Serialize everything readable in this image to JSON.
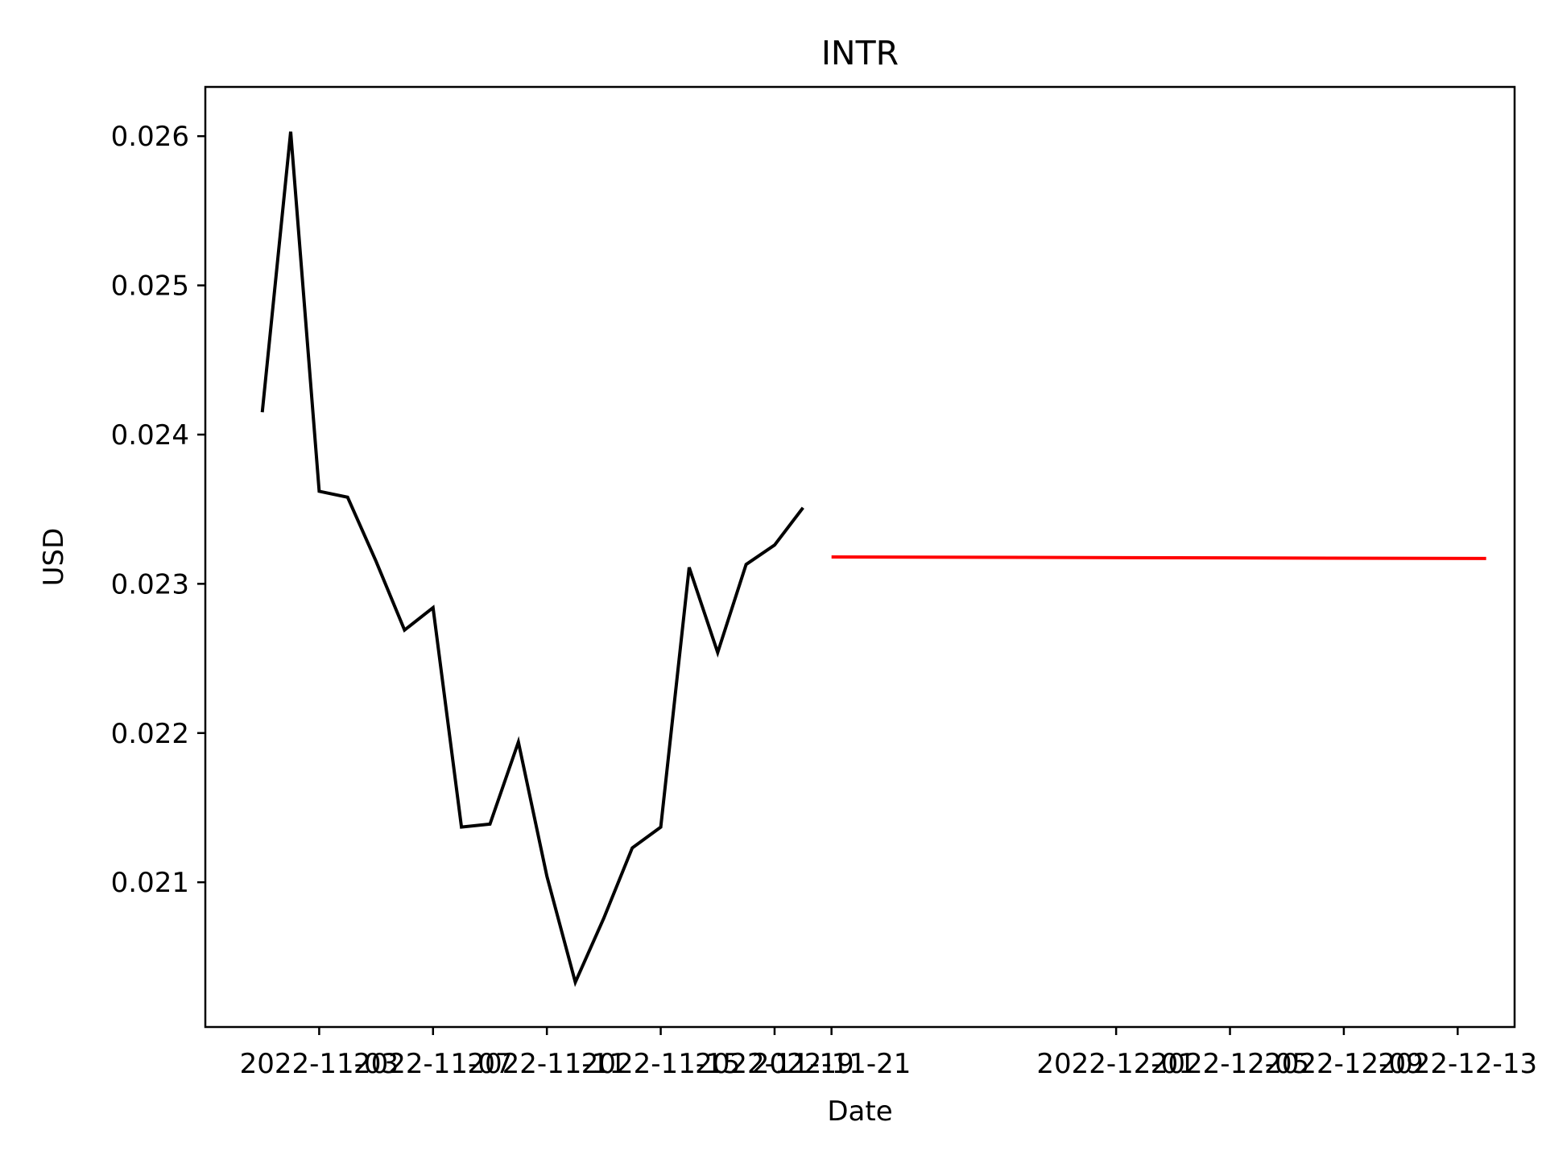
{
  "chart_data": {
    "type": "line",
    "title": "INTR",
    "xlabel": "Date",
    "ylabel": "USD",
    "grid": false,
    "legend": "none",
    "xlim": [
      "2022-10-30",
      "2022-12-15"
    ],
    "ylim": [
      0.02003,
      0.02633
    ],
    "x_ticks": [
      "2022-11-03",
      "2022-11-07",
      "2022-11-11",
      "2022-11-15",
      "2022-11-19",
      "2022-11-21",
      "2022-12-01",
      "2022-12-05",
      "2022-12-09",
      "2022-12-13"
    ],
    "x_tick_labels": [
      "2022-11-03",
      "2022-11-07",
      "2022-11-11",
      "2022-11-15",
      "2022-11-19",
      "2022-11-21",
      "2022-12-01",
      "2022-12-05",
      "2022-12-09",
      "2022-12-13"
    ],
    "y_ticks": [
      0.021,
      0.022,
      0.023,
      0.024,
      0.025,
      0.026
    ],
    "y_tick_labels": [
      "0.021",
      "0.022",
      "0.023",
      "0.024",
      "0.025",
      "0.026"
    ],
    "series": [
      {
        "color": "#000000",
        "x": [
          "2022-11-01",
          "2022-11-02",
          "2022-11-03",
          "2022-11-04",
          "2022-11-05",
          "2022-11-06",
          "2022-11-07",
          "2022-11-08",
          "2022-11-09",
          "2022-11-10",
          "2022-11-11",
          "2022-11-12",
          "2022-11-13",
          "2022-11-14",
          "2022-11-15",
          "2022-11-16",
          "2022-11-17",
          "2022-11-18",
          "2022-11-19",
          "2022-11-20"
        ],
        "values": [
          0.02415,
          0.02603,
          0.02362,
          0.02358,
          0.02315,
          0.02269,
          0.02284,
          0.02137,
          0.02139,
          0.02194,
          0.02104,
          0.02033,
          0.02076,
          0.02123,
          0.02137,
          0.02311,
          0.02254,
          0.02313,
          0.02326,
          0.02351
        ]
      },
      {
        "color": "#ff0000",
        "x": [
          "2022-11-21",
          "2022-12-14"
        ],
        "values": [
          0.02318,
          0.02317
        ]
      }
    ]
  }
}
